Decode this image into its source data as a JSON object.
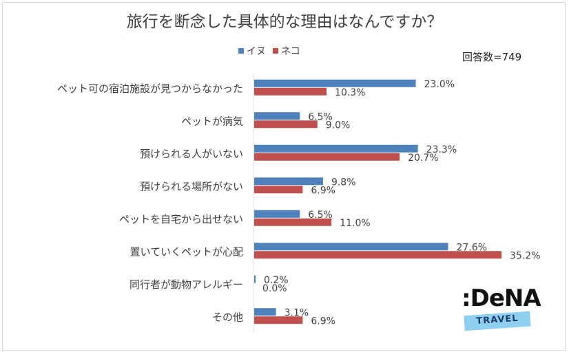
{
  "chart_data": {
    "type": "bar",
    "orientation": "horizontal",
    "title": "旅行を断念した具体的な理由はなんですか？",
    "respondents_label": "回答数=749",
    "categories": [
      "ペット可の宿泊施設が見つからなかった",
      "ペットが病気",
      "預けられる人がいない",
      "預けられる場所がない",
      "ペットを自宅から出せない",
      "置いていくペットが心配",
      "同行者が動物アレルギー",
      "その他"
    ],
    "series": [
      {
        "name": "イヌ",
        "color": "#4f81bd",
        "values": [
          23.0,
          6.5,
          23.3,
          9.8,
          6.5,
          27.6,
          0.2,
          3.1
        ],
        "labels": [
          "23.0%",
          "6.5%",
          "23.3%",
          "9.8%",
          "6.5%",
          "27.6%",
          "0.2%",
          "3.1%"
        ]
      },
      {
        "name": "ネコ",
        "color": "#c0504d",
        "values": [
          10.3,
          9.0,
          20.7,
          6.9,
          11.0,
          35.2,
          0.0,
          6.9
        ],
        "labels": [
          "10.3%",
          "9.0%",
          "20.7%",
          "6.9%",
          "11.0%",
          "35.2%",
          "0.0%",
          "6.9%"
        ]
      }
    ],
    "unit": "%",
    "legend": "top-center",
    "grid": false
  },
  "logo": {
    "brand": ":DeNA",
    "sub": "TRAVEL"
  }
}
